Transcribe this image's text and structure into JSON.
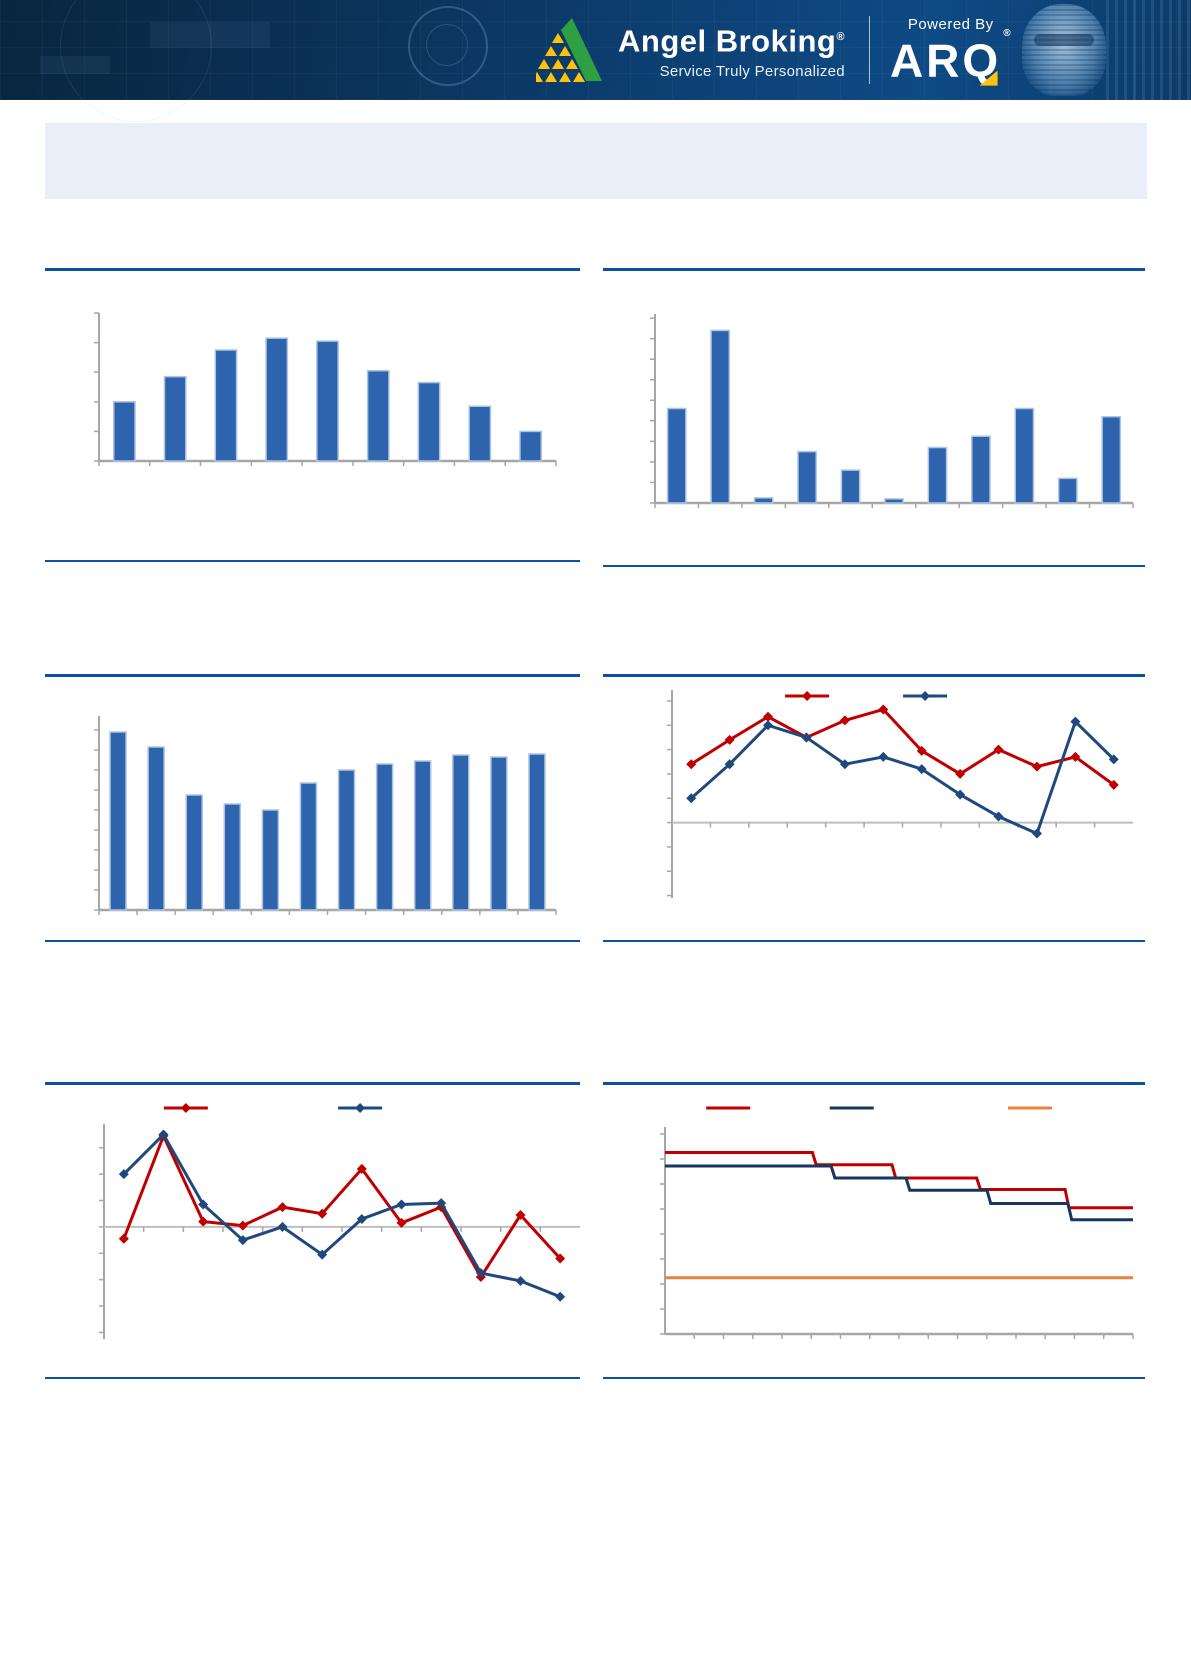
{
  "header": {
    "brand": "Angel Broking",
    "registered_mark": "®",
    "tagline": "Service Truly Personalized",
    "powered_by_label": "Powered By",
    "arq_logo_text": "ARQ",
    "colors": {
      "header_bg": "#0D3F72",
      "brand_green": "#2FA042",
      "brand_yellow": "#FFC20E",
      "text": "#FFFFFF"
    }
  },
  "rules": {
    "divider_color": "#0A51A5"
  },
  "chart_data": [
    {
      "type": "bar",
      "title": "",
      "values": [
        2.0,
        2.85,
        3.75,
        4.15,
        4.05,
        3.05,
        2.65,
        1.85,
        1.0
      ],
      "ylim": [
        0,
        5
      ],
      "ytick": 1,
      "grid": false,
      "colors": {
        "bar": "#2E64AE",
        "bar_border": "#AEC5E0",
        "axis": "#A6A6A6"
      }
    },
    {
      "type": "bar",
      "title": "",
      "values": [
        4.6,
        8.4,
        0.25,
        2.5,
        1.6,
        0.2,
        2.7,
        3.25,
        4.6,
        1.2,
        4.2
      ],
      "ylim": [
        0,
        9.2
      ],
      "ytick": 1,
      "grid": false,
      "colors": {
        "bar": "#2E64AE",
        "bar_border": "#AEC5E0",
        "axis": "#A6A6A6"
      }
    },
    {
      "type": "bar",
      "title": "",
      "values": [
        8.9,
        8.15,
        5.75,
        5.3,
        5.0,
        6.35,
        7.0,
        7.3,
        7.45,
        7.75,
        7.65,
        7.8
      ],
      "ylim": [
        0,
        9.7
      ],
      "ytick": 1,
      "grid": false,
      "colors": {
        "bar": "#2E64AE",
        "bar_border": "#AEC5E0",
        "axis": "#A6A6A6"
      }
    },
    {
      "type": "line",
      "title": "",
      "legend_labels": [
        "",
        ""
      ],
      "series": [
        {
          "color": "#C00000",
          "values": [
            2.4,
            3.4,
            4.35,
            3.5,
            4.2,
            4.65,
            2.95,
            2.0,
            3.0,
            2.3,
            2.7,
            1.55
          ]
        },
        {
          "color": "#1F497D",
          "values": [
            1.0,
            2.4,
            4.0,
            3.5,
            2.4,
            2.7,
            2.2,
            1.15,
            0.25,
            -0.45,
            4.15,
            2.6
          ]
        }
      ],
      "ylim": [
        -3.1,
        5.45
      ],
      "ytick": 1,
      "grid": false,
      "colors": {
        "axis": "#A6A6A6",
        "zero_line": "#BFBFBF"
      }
    },
    {
      "type": "line",
      "title": "",
      "legend_labels": [
        "",
        ""
      ],
      "series": [
        {
          "color": "#C00000",
          "values": [
            -0.45,
            3.45,
            0.2,
            0.05,
            0.75,
            0.5,
            2.2,
            0.15,
            0.75,
            -1.9,
            0.45,
            -1.2
          ]
        },
        {
          "color": "#1F497D",
          "values": [
            2.0,
            3.5,
            0.85,
            -0.5,
            0.0,
            -1.05,
            0.3,
            0.85,
            0.9,
            -1.75,
            -2.05,
            -2.65
          ]
        }
      ],
      "ylim": [
        -4.25,
        3.9
      ],
      "ytick": 1,
      "grid": false,
      "colors": {
        "axis": "#A6A6A6",
        "zero_line": "#BFBFBF"
      }
    },
    {
      "type": "step",
      "title": "",
      "legend_labels": [
        "",
        "",
        ""
      ],
      "series": [
        {
          "color": "#C00000",
          "levels": [
            7.26,
            6.77,
            6.24,
            5.78,
            5.05
          ],
          "breaks": [
            0.315,
            0.485,
            0.666,
            0.855
          ]
        },
        {
          "color": "#17375E",
          "levels": [
            6.72,
            6.24,
            5.75,
            5.22,
            4.57
          ],
          "breaks": [
            0.355,
            0.515,
            0.688,
            0.861
          ]
        },
        {
          "color": "#E8823C",
          "levels": [
            2.25
          ],
          "breaks": []
        }
      ],
      "ylim": [
        0,
        8.28
      ],
      "ytick": 1,
      "grid": false,
      "colors": {
        "axis": "#A6A6A6"
      }
    }
  ]
}
